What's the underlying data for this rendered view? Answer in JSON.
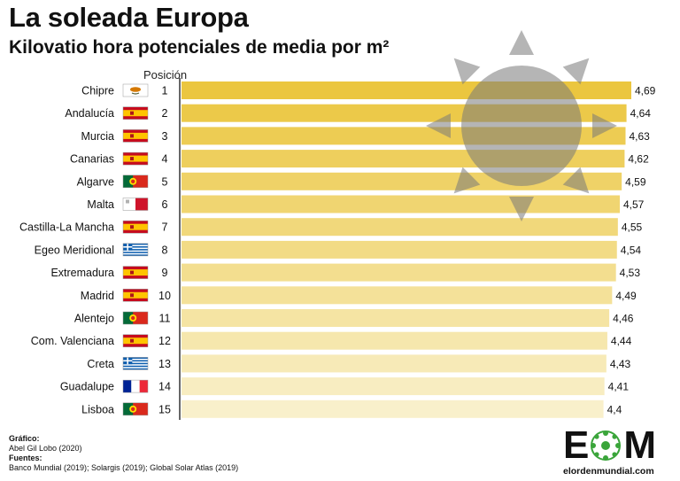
{
  "header": {
    "title": "La soleada Europa",
    "subtitle": "Kilovatio hora potenciales de media por m²",
    "position_label": "Posición"
  },
  "chart_data": {
    "type": "bar",
    "orientation": "horizontal",
    "categories": [
      "Chipre",
      "Andalucía",
      "Murcia",
      "Canarias",
      "Algarve",
      "Malta",
      "Castilla-La Mancha",
      "Egeo Meridional",
      "Extremadura",
      "Madrid",
      "Alentejo",
      "Com. Valenciana",
      "Creta",
      "Guadalupe",
      "Lisboa"
    ],
    "positions": [
      1,
      2,
      3,
      4,
      5,
      6,
      7,
      8,
      9,
      10,
      11,
      12,
      13,
      14,
      15
    ],
    "values": [
      4.69,
      4.64,
      4.63,
      4.62,
      4.59,
      4.57,
      4.55,
      4.54,
      4.53,
      4.49,
      4.46,
      4.44,
      4.43,
      4.41,
      4.4
    ],
    "value_labels": [
      "4,69",
      "4,64",
      "4,63",
      "4,62",
      "4,59",
      "4,57",
      "4,55",
      "4,54",
      "4,53",
      "4,49",
      "4,46",
      "4,44",
      "4,43",
      "4,41",
      "4,4"
    ],
    "flags": [
      "cyprus",
      "spain",
      "spain",
      "spain",
      "portugal",
      "malta",
      "spain",
      "greece",
      "spain",
      "spain",
      "portugal",
      "spain",
      "greece",
      "france",
      "portugal"
    ],
    "bar_colors": [
      "#ebc63f",
      "#ecc949",
      "#edcc53",
      "#eecf5d",
      "#efd267",
      "#f0d571",
      "#f1d87b",
      "#f2db85",
      "#f3de8f",
      "#f4e199",
      "#f5e4a3",
      "#f6e7ad",
      "#f7eab7",
      "#f8edc1",
      "#f9f0cb"
    ],
    "title": "La soleada Europa",
    "subtitle": "Kilovatio hora potenciales de media por m²"
  },
  "credits": {
    "chart_label": "Gráfico:",
    "chart_author": "Abel Gil Lobo (2020)",
    "sources_label": "Fuentes:",
    "sources": "Banco Mundial (2019); Solargis (2019); Global Solar Atlas (2019)"
  },
  "logo": {
    "letter_1": "E",
    "letter_2": "M",
    "url": "elordenmundial.com"
  }
}
